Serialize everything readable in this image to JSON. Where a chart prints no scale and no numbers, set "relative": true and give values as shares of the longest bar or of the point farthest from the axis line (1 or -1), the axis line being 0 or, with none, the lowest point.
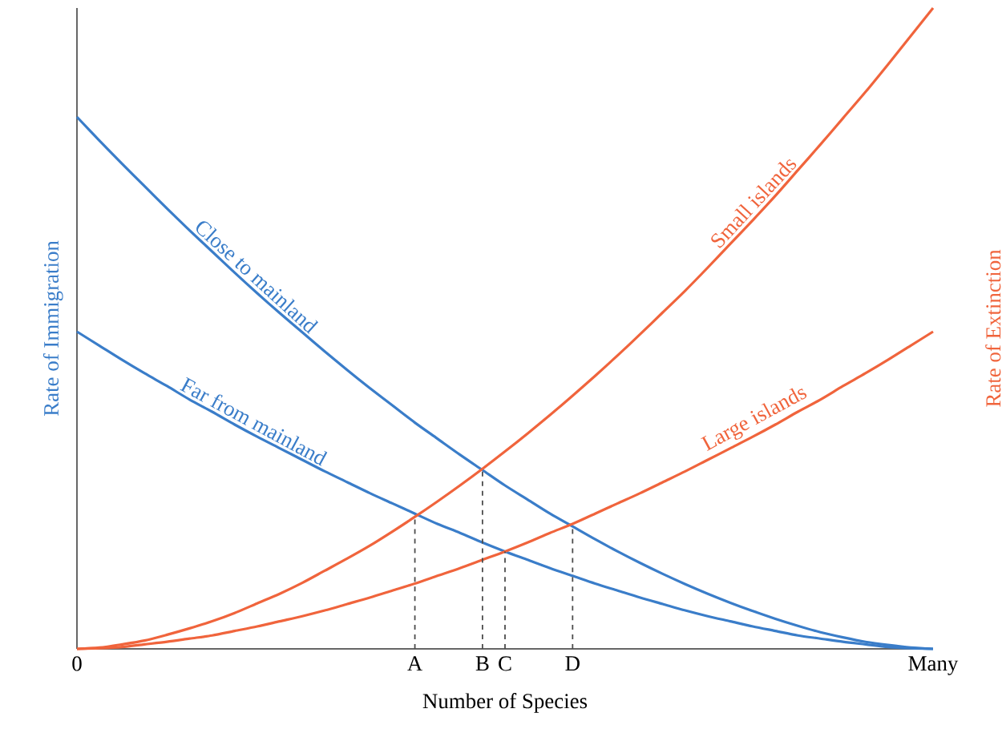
{
  "chart_data": {
    "type": "line",
    "relative": true,
    "xlabel": "Number of Species",
    "ylabel": "Rate of Immigration",
    "y2label": "Rate of Extinction",
    "categories": [
      "0",
      null,
      null,
      null,
      null,
      null,
      null,
      null,
      null,
      null,
      null,
      null,
      null,
      null,
      null,
      "A",
      null,
      null,
      "B",
      "C",
      null,
      null,
      "D",
      null,
      null,
      null,
      null,
      null,
      null,
      null,
      null,
      null,
      null,
      null,
      null,
      null,
      null,
      null,
      "Many"
    ],
    "series": [
      {
        "name": "Close to mainland",
        "color": "#3a7dc9",
        "values": [
          0.83,
          0.793,
          0.757,
          0.722,
          0.687,
          0.653,
          0.62,
          0.587,
          0.555,
          0.524,
          0.494,
          0.464,
          0.435,
          0.407,
          0.38,
          0.353,
          0.328,
          0.303,
          0.279,
          0.255,
          0.233,
          0.211,
          0.191,
          0.171,
          0.152,
          0.134,
          0.117,
          0.101,
          0.086,
          0.072,
          0.059,
          0.047,
          0.036,
          0.026,
          0.018,
          0.011,
          0.006,
          0.002,
          0
        ]
      },
      {
        "name": "Far from mainland",
        "color": "#3a7dc9",
        "values": [
          0.495,
          0.473,
          0.451,
          0.43,
          0.41,
          0.389,
          0.37,
          0.35,
          0.331,
          0.313,
          0.295,
          0.277,
          0.26,
          0.243,
          0.227,
          0.211,
          0.195,
          0.181,
          0.166,
          0.152,
          0.139,
          0.126,
          0.114,
          0.102,
          0.091,
          0.08,
          0.07,
          0.06,
          0.051,
          0.043,
          0.035,
          0.028,
          0.021,
          0.016,
          0.011,
          0.007,
          0.003,
          0.001,
          0
        ]
      },
      {
        "name": "Small islands",
        "color": "#f0643c",
        "axis": "y2",
        "values": [
          0,
          0.002,
          0.007,
          0.013,
          0.022,
          0.032,
          0.043,
          0.056,
          0.071,
          0.086,
          0.103,
          0.122,
          0.141,
          0.161,
          0.183,
          0.206,
          0.23,
          0.255,
          0.281,
          0.308,
          0.336,
          0.365,
          0.395,
          0.426,
          0.458,
          0.491,
          0.525,
          0.559,
          0.595,
          0.632,
          0.669,
          0.707,
          0.747,
          0.787,
          0.828,
          0.869,
          0.912,
          0.956,
          1
        ]
      },
      {
        "name": "Large islands",
        "color": "#f0643c",
        "axis": "y2",
        "values": [
          0,
          0.001,
          0.003,
          0.007,
          0.011,
          0.016,
          0.021,
          0.028,
          0.035,
          0.043,
          0.051,
          0.06,
          0.07,
          0.08,
          0.091,
          0.102,
          0.114,
          0.126,
          0.139,
          0.152,
          0.166,
          0.181,
          0.195,
          0.211,
          0.227,
          0.243,
          0.26,
          0.277,
          0.295,
          0.313,
          0.331,
          0.35,
          0.37,
          0.389,
          0.41,
          0.43,
          0.451,
          0.473,
          0.495
        ]
      }
    ],
    "ref_lines": [
      {
        "axis": "x",
        "value": "A",
        "line_style": "dashed"
      },
      {
        "axis": "x",
        "value": "B",
        "line_style": "dashed"
      },
      {
        "axis": "x",
        "value": "C",
        "line_style": "dashed"
      },
      {
        "axis": "x",
        "value": "D",
        "line_style": "dashed"
      }
    ]
  }
}
